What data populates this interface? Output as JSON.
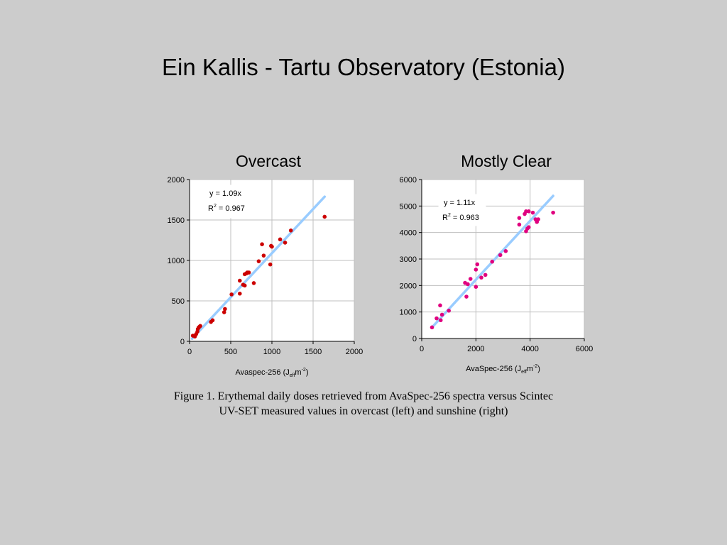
{
  "slide": {
    "title": "Ein Kallis - Tartu Observatory (Estonia)",
    "caption_line1": "Figure 1. Erythemal daily doses retrieved from AvaSpec-256 spectra versus Scintec",
    "caption_line2": "UV-SET measured values in overcast (left) and sunshine (right)"
  },
  "colors": {
    "background": "#cccccc",
    "plot_area": "#ffffff",
    "gridline": "#bfbfbf",
    "trendline": "#99ccff",
    "overcast_points": "#cc0000",
    "clear_points": "#e0007f"
  },
  "chart_data": [
    {
      "type": "scatter",
      "title": "Overcast",
      "xlabel_main": "Avaspec-256 (J",
      "xlabel_sub": "eff",
      "xlabel_unit": "m",
      "xlabel_sup": "-2",
      "xlabel_close": ")",
      "ylabel": "",
      "xlim": [
        0,
        2000
      ],
      "ylim": [
        0,
        2000
      ],
      "xticks": [
        0,
        500,
        1000,
        1500,
        2000
      ],
      "yticks": [
        0,
        500,
        1000,
        1500,
        2000
      ],
      "grid": true,
      "trendline": {
        "slope": 1.09,
        "x_range": [
          30,
          1640
        ]
      },
      "equation": "y = 1.09x",
      "r2_prefix": "R",
      "r2_sup": "2",
      "r2_value": " = 0.967",
      "points": [
        [
          40,
          70
        ],
        [
          65,
          60
        ],
        [
          80,
          90
        ],
        [
          95,
          120
        ],
        [
          100,
          150
        ],
        [
          110,
          170
        ],
        [
          120,
          180
        ],
        [
          130,
          190
        ],
        [
          260,
          240
        ],
        [
          280,
          260
        ],
        [
          420,
          360
        ],
        [
          430,
          400
        ],
        [
          510,
          580
        ],
        [
          610,
          590
        ],
        [
          610,
          750
        ],
        [
          650,
          700
        ],
        [
          670,
          690
        ],
        [
          670,
          830
        ],
        [
          690,
          840
        ],
        [
          700,
          850
        ],
        [
          720,
          850
        ],
        [
          780,
          720
        ],
        [
          840,
          990
        ],
        [
          880,
          1200
        ],
        [
          900,
          1060
        ],
        [
          980,
          950
        ],
        [
          990,
          1180
        ],
        [
          1000,
          1170
        ],
        [
          1100,
          1260
        ],
        [
          1160,
          1220
        ],
        [
          1230,
          1370
        ],
        [
          1640,
          1540
        ]
      ]
    },
    {
      "type": "scatter",
      "title": "Mostly Clear",
      "xlabel_main": "AvaSpec-256 (J",
      "xlabel_sub": "eff",
      "xlabel_unit": "m",
      "xlabel_sup": "-2",
      "xlabel_close": ")",
      "ylabel": "",
      "xlim": [
        0,
        6000
      ],
      "ylim": [
        0,
        6000
      ],
      "xticks": [
        0,
        2000,
        4000,
        6000
      ],
      "yticks": [
        0,
        1000,
        2000,
        3000,
        4000,
        5000,
        6000
      ],
      "grid": true,
      "trendline": {
        "slope": 1.11,
        "x_range": [
          380,
          4850
        ]
      },
      "equation": "y = 1.11x",
      "r2_prefix": "R",
      "r2_sup": "2",
      "r2_value": " = 0.963",
      "points": [
        [
          380,
          420
        ],
        [
          550,
          760
        ],
        [
          680,
          1250
        ],
        [
          700,
          690
        ],
        [
          750,
          900
        ],
        [
          1000,
          1050
        ],
        [
          1600,
          2100
        ],
        [
          1650,
          1580
        ],
        [
          1700,
          2050
        ],
        [
          1800,
          2250
        ],
        [
          2000,
          2600
        ],
        [
          2000,
          1950
        ],
        [
          2050,
          2800
        ],
        [
          2200,
          2300
        ],
        [
          2350,
          2400
        ],
        [
          2600,
          2900
        ],
        [
          2900,
          3150
        ],
        [
          3100,
          3300
        ],
        [
          3600,
          4550
        ],
        [
          3600,
          4300
        ],
        [
          3800,
          4700
        ],
        [
          3850,
          4800
        ],
        [
          3850,
          4050
        ],
        [
          3900,
          4150
        ],
        [
          3950,
          4200
        ],
        [
          3950,
          4800
        ],
        [
          4100,
          4750
        ],
        [
          4200,
          4500
        ],
        [
          4250,
          4400
        ],
        [
          4300,
          4500
        ],
        [
          4850,
          4750
        ]
      ]
    }
  ]
}
